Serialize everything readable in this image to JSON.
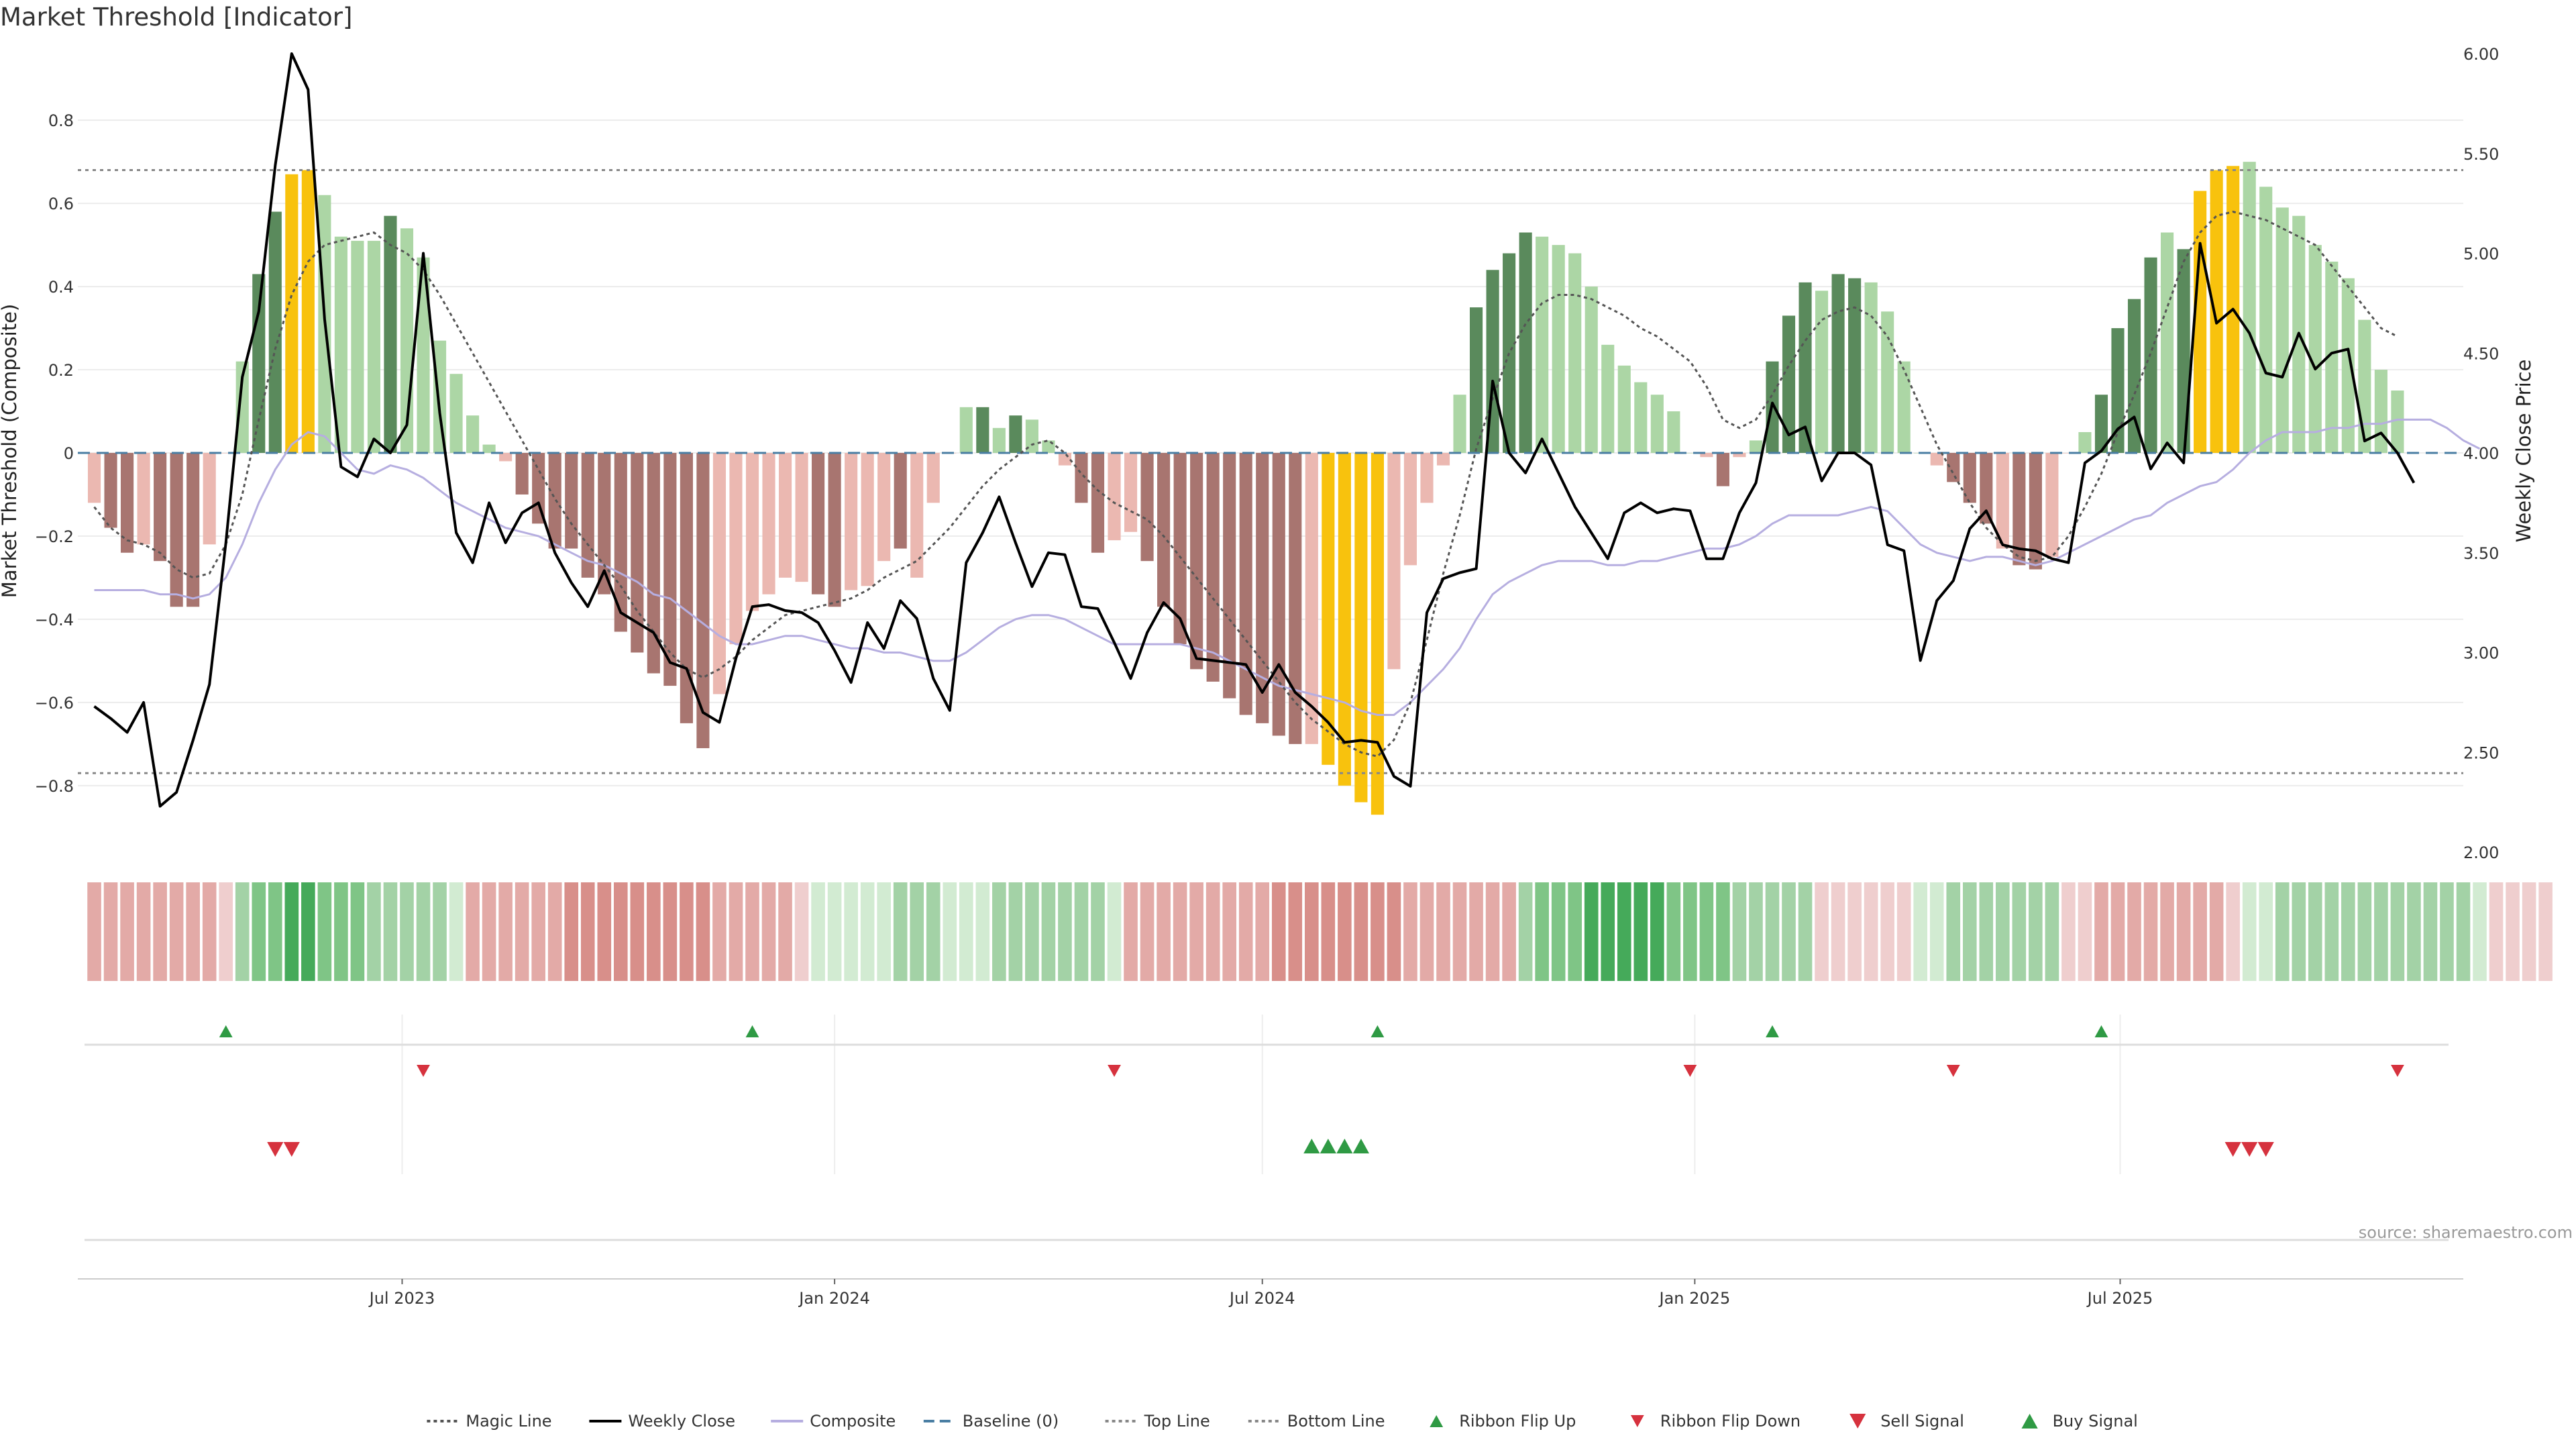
{
  "title": "Market Threshold [Indicator]",
  "source_note": "source: sharemaestro.com",
  "colors": {
    "bright_green": "#5a8a5c",
    "light_green": "#acd6a5",
    "bright_red": "#a87570",
    "light_red": "#ebb8b1",
    "extreme": "#f8c20d",
    "weekly_close": "#000000",
    "composite": "#b6aee0",
    "magic_line": "#555555",
    "baseline": "#4a7ea3",
    "threshold_line": "#888888",
    "buy_marker": "#2f9a44",
    "sell_marker": "#d6323e"
  },
  "chart_data": {
    "type": "bar",
    "title": "Market Threshold [Indicator]",
    "ylabel": "Market Threshold (Composite)",
    "y2label": "Weekly Close Price",
    "ylim": [
      -0.96,
      0.96
    ],
    "y2lim": [
      2.0,
      6.0
    ],
    "yticks": [
      -0.8,
      -0.6,
      -0.4,
      -0.2,
      0,
      0.2,
      0.4,
      0.6,
      0.8
    ],
    "ytick_labels": [
      "−0.8",
      "−0.6",
      "−0.4",
      "−0.2",
      "0",
      "0.2",
      "0.4",
      "0.6",
      "0.8"
    ],
    "y2ticks": [
      2.0,
      2.5,
      3.0,
      3.5,
      4.0,
      4.5,
      5.0,
      5.5,
      6.0
    ],
    "y2tick_labels": [
      "2.00",
      "2.50",
      "3.00",
      "3.50",
      "4.00",
      "4.50",
      "5.00",
      "5.50",
      "6.00"
    ],
    "x_start": "2023-02-13",
    "x_end": "2025-11-24",
    "xticks": [
      {
        "date": "2023-07-01",
        "label": "Jul 2023"
      },
      {
        "date": "2024-01-01",
        "label": "Jan 2024"
      },
      {
        "date": "2024-07-01",
        "label": "Jul 2024"
      },
      {
        "date": "2025-01-01",
        "label": "Jan 2025"
      },
      {
        "date": "2025-07-01",
        "label": "Jul 2025"
      }
    ],
    "top_line": 0.68,
    "bottom_line": -0.77,
    "baseline": 0,
    "grid": true,
    "legend_position": "bottom-center",
    "series": [
      {
        "name": "Magic Line",
        "type": "line",
        "style": "dotted",
        "axis": "left"
      },
      {
        "name": "Weekly Close",
        "type": "line",
        "style": "solid",
        "axis": "right"
      },
      {
        "name": "Composite",
        "type": "line",
        "style": "solid",
        "axis": "left"
      },
      {
        "name": "Baseline (0)",
        "type": "line",
        "style": "dashed",
        "axis": "left"
      },
      {
        "name": "Top Line",
        "type": "line",
        "style": "dotted",
        "axis": "left"
      },
      {
        "name": "Bottom Line",
        "type": "line",
        "style": "dotted",
        "axis": "left"
      }
    ],
    "bars": {
      "start": "2023-02-20",
      "values": [
        -0.12,
        -0.18,
        -0.24,
        -0.22,
        -0.26,
        -0.37,
        -0.37,
        -0.22,
        0.0,
        0.22,
        0.43,
        0.58,
        0.67,
        0.68,
        0.62,
        0.52,
        0.51,
        0.51,
        0.57,
        0.54,
        0.47,
        0.27,
        0.19,
        0.09,
        0.02,
        -0.02,
        -0.1,
        -0.17,
        -0.23,
        -0.23,
        -0.3,
        -0.34,
        -0.43,
        -0.48,
        -0.53,
        -0.56,
        -0.65,
        -0.71,
        -0.58,
        -0.46,
        -0.38,
        -0.34,
        -0.3,
        -0.31,
        -0.34,
        -0.37,
        -0.33,
        -0.32,
        -0.26,
        -0.23,
        -0.3,
        -0.12,
        0.0,
        0.11,
        0.11,
        0.06,
        0.09,
        0.08,
        0.03,
        -0.03,
        -0.12,
        -0.24,
        -0.21,
        -0.19,
        -0.26,
        -0.37,
        -0.46,
        -0.52,
        -0.55,
        -0.59,
        -0.63,
        -0.65,
        -0.68,
        -0.7,
        -0.7,
        -0.75,
        -0.8,
        -0.84,
        -0.87,
        -0.52,
        -0.27,
        -0.12,
        -0.03,
        0.14,
        0.35,
        0.44,
        0.48,
        0.53,
        0.52,
        0.5,
        0.48,
        0.4,
        0.26,
        0.21,
        0.17,
        0.14,
        0.1,
        0.0,
        -0.01,
        -0.08,
        -0.01,
        0.03,
        0.22,
        0.33,
        0.41,
        0.39,
        0.43,
        0.42,
        0.41,
        0.34,
        0.22,
        0.0,
        -0.03,
        -0.07,
        -0.12,
        -0.17,
        -0.23,
        -0.27,
        -0.28,
        -0.25,
        0.0,
        0.05,
        0.14,
        0.3,
        0.37,
        0.47,
        0.53,
        0.49,
        0.63,
        0.68,
        0.69,
        0.7,
        0.64,
        0.59,
        0.57,
        0.5,
        0.46,
        0.42,
        0.32,
        0.2,
        0.15
      ],
      "color_codes": [
        "lr",
        "br",
        "br",
        "lr",
        "br",
        "br",
        "br",
        "lr",
        "lr",
        "lg",
        "bg",
        "bg",
        "ex",
        "ex",
        "lg",
        "lg",
        "lg",
        "lg",
        "bg",
        "lg",
        "lg",
        "lg",
        "lg",
        "lg",
        "lg",
        "lr",
        "br",
        "br",
        "br",
        "br",
        "br",
        "br",
        "br",
        "br",
        "br",
        "br",
        "br",
        "br",
        "lr",
        "lr",
        "lr",
        "lr",
        "lr",
        "lr",
        "br",
        "br",
        "lr",
        "lr",
        "lr",
        "br",
        "lr",
        "lr",
        "lr",
        "lg",
        "bg",
        "lg",
        "bg",
        "lg",
        "lg",
        "lr",
        "br",
        "br",
        "lr",
        "lr",
        "br",
        "br",
        "br",
        "br",
        "br",
        "br",
        "br",
        "br",
        "br",
        "br",
        "lr",
        "ex",
        "ex",
        "ex",
        "ex",
        "lr",
        "lr",
        "lr",
        "lr",
        "lg",
        "bg",
        "bg",
        "bg",
        "bg",
        "lg",
        "lg",
        "lg",
        "lg",
        "lg",
        "lg",
        "lg",
        "lg",
        "lg",
        "lg",
        "lr",
        "br",
        "lr",
        "lg",
        "bg",
        "bg",
        "bg",
        "lg",
        "bg",
        "bg",
        "lg",
        "lg",
        "lg",
        "lg",
        "lr",
        "br",
        "br",
        "br",
        "lr",
        "br",
        "br",
        "lr",
        "lr",
        "lg",
        "bg",
        "bg",
        "bg",
        "bg",
        "lg",
        "bg",
        "ex",
        "ex",
        "ex",
        "lg",
        "lg",
        "lg",
        "lg",
        "lg",
        "lg",
        "lg",
        "lg",
        "lg"
      ]
    },
    "composite": [
      -0.33,
      -0.33,
      -0.33,
      -0.33,
      -0.34,
      -0.34,
      -0.35,
      -0.34,
      -0.3,
      -0.22,
      -0.12,
      -0.04,
      0.02,
      0.05,
      0.04,
      0.0,
      -0.04,
      -0.05,
      -0.03,
      -0.04,
      -0.06,
      -0.09,
      -0.12,
      -0.14,
      -0.16,
      -0.18,
      -0.19,
      -0.2,
      -0.22,
      -0.24,
      -0.26,
      -0.27,
      -0.29,
      -0.31,
      -0.34,
      -0.35,
      -0.38,
      -0.41,
      -0.44,
      -0.46,
      -0.46,
      -0.45,
      -0.44,
      -0.44,
      -0.45,
      -0.46,
      -0.47,
      -0.47,
      -0.48,
      -0.48,
      -0.49,
      -0.5,
      -0.5,
      -0.48,
      -0.45,
      -0.42,
      -0.4,
      -0.39,
      -0.39,
      -0.4,
      -0.42,
      -0.44,
      -0.46,
      -0.46,
      -0.46,
      -0.46,
      -0.46,
      -0.47,
      -0.48,
      -0.5,
      -0.52,
      -0.54,
      -0.56,
      -0.57,
      -0.58,
      -0.59,
      -0.6,
      -0.62,
      -0.63,
      -0.63,
      -0.6,
      -0.56,
      -0.52,
      -0.47,
      -0.4,
      -0.34,
      -0.31,
      -0.29,
      -0.27,
      -0.26,
      -0.26,
      -0.26,
      -0.27,
      -0.27,
      -0.26,
      -0.26,
      -0.25,
      -0.24,
      -0.23,
      -0.23,
      -0.22,
      -0.2,
      -0.17,
      -0.15,
      -0.15,
      -0.15,
      -0.15,
      -0.14,
      -0.13,
      -0.14,
      -0.18,
      -0.22,
      -0.24,
      -0.25,
      -0.26,
      -0.25,
      -0.25,
      -0.26,
      -0.27,
      -0.26,
      -0.24,
      -0.22,
      -0.2,
      -0.18,
      -0.16,
      -0.15,
      -0.12,
      -0.1,
      -0.08,
      -0.07,
      -0.04,
      0.0,
      0.03,
      0.05,
      0.05,
      0.05,
      0.06,
      0.06,
      0.07,
      0.07,
      0.08,
      0.08,
      0.08,
      0.06,
      0.03,
      0.01
    ],
    "magic_line": [
      -0.13,
      -0.18,
      -0.21,
      -0.22,
      -0.24,
      -0.28,
      -0.3,
      -0.29,
      -0.22,
      -0.1,
      0.08,
      0.25,
      0.38,
      0.46,
      0.5,
      0.51,
      0.52,
      0.53,
      0.5,
      0.48,
      0.44,
      0.38,
      0.31,
      0.24,
      0.17,
      0.1,
      0.03,
      -0.04,
      -0.11,
      -0.17,
      -0.22,
      -0.27,
      -0.32,
      -0.38,
      -0.43,
      -0.48,
      -0.52,
      -0.54,
      -0.52,
      -0.49,
      -0.45,
      -0.42,
      -0.39,
      -0.38,
      -0.37,
      -0.36,
      -0.35,
      -0.33,
      -0.3,
      -0.28,
      -0.26,
      -0.22,
      -0.18,
      -0.13,
      -0.08,
      -0.04,
      -0.01,
      0.02,
      0.03,
      0.0,
      -0.05,
      -0.09,
      -0.12,
      -0.14,
      -0.16,
      -0.2,
      -0.25,
      -0.3,
      -0.35,
      -0.4,
      -0.45,
      -0.5,
      -0.55,
      -0.6,
      -0.64,
      -0.67,
      -0.7,
      -0.72,
      -0.73,
      -0.69,
      -0.6,
      -0.45,
      -0.29,
      -0.15,
      0.01,
      0.13,
      0.24,
      0.31,
      0.36,
      0.38,
      0.38,
      0.37,
      0.35,
      0.33,
      0.3,
      0.28,
      0.25,
      0.22,
      0.16,
      0.08,
      0.06,
      0.08,
      0.14,
      0.21,
      0.27,
      0.32,
      0.34,
      0.35,
      0.33,
      0.28,
      0.2,
      0.11,
      0.02,
      -0.05,
      -0.12,
      -0.18,
      -0.22,
      -0.25,
      -0.26,
      -0.25,
      -0.2,
      -0.13,
      -0.05,
      0.05,
      0.14,
      0.24,
      0.35,
      0.46,
      0.53,
      0.57,
      0.58,
      0.57,
      0.56,
      0.54,
      0.52,
      0.5,
      0.45,
      0.4,
      0.35,
      0.3,
      0.28
    ],
    "weekly_close": [
      2.73,
      2.67,
      2.6,
      2.75,
      2.23,
      2.3,
      2.56,
      2.84,
      3.55,
      4.38,
      4.71,
      5.44,
      6.0,
      5.82,
      4.67,
      3.93,
      3.88,
      4.07,
      4.0,
      4.14,
      5.0,
      4.2,
      3.6,
      3.45,
      3.75,
      3.55,
      3.7,
      3.75,
      3.5,
      3.35,
      3.23,
      3.41,
      3.2,
      3.15,
      3.1,
      2.95,
      2.92,
      2.7,
      2.65,
      2.97,
      3.23,
      3.24,
      3.21,
      3.2,
      3.15,
      3.01,
      2.85,
      3.15,
      3.02,
      3.26,
      3.17,
      2.87,
      2.71,
      3.45,
      3.6,
      3.78,
      3.55,
      3.33,
      3.5,
      3.49,
      3.23,
      3.22,
      3.05,
      2.87,
      3.1,
      3.25,
      3.17,
      2.97,
      2.96,
      2.95,
      2.94,
      2.8,
      2.94,
      2.8,
      2.73,
      2.65,
      2.55,
      2.56,
      2.55,
      2.38,
      2.33,
      3.2,
      3.37,
      3.4,
      3.42,
      4.36,
      4.0,
      3.9,
      4.07,
      3.9,
      3.73,
      3.6,
      3.47,
      3.7,
      3.75,
      3.7,
      3.72,
      3.71,
      3.47,
      3.47,
      3.7,
      3.85,
      4.25,
      4.09,
      4.13,
      3.86,
      4.0,
      4.0,
      3.94,
      3.54,
      3.51,
      2.96,
      3.26,
      3.36,
      3.62,
      3.71,
      3.54,
      3.52,
      3.51,
      3.47,
      3.45,
      3.95,
      4.01,
      4.12,
      4.18,
      3.92,
      4.05,
      3.95,
      5.05,
      4.65,
      4.72,
      4.6,
      4.4,
      4.38,
      4.6,
      4.42,
      4.5,
      4.52,
      4.06,
      4.1,
      4.0,
      3.85
    ],
    "ribbon": [
      {
        "start": "2023-02-20",
        "codes": [
          "r1",
          "r1",
          "r1",
          "r1",
          "r1",
          "r1",
          "r1",
          "r1",
          "r0",
          "g1",
          "g2",
          "g2",
          "g3",
          "g3",
          "g2",
          "g2",
          "g2",
          "g1",
          "g1",
          "g1",
          "g1",
          "g1",
          "g0",
          "r1",
          "r1",
          "r1",
          "r1",
          "r1",
          "r1",
          "r2",
          "r2",
          "r2",
          "r2",
          "r2",
          "r2",
          "r2",
          "r2",
          "r2",
          "r1",
          "r1",
          "r1",
          "r1",
          "r1",
          "r0",
          "g0",
          "g0",
          "g0",
          "g0",
          "g0",
          "g1",
          "g1",
          "g1",
          "g0",
          "g0",
          "g0",
          "g1",
          "g1",
          "g1",
          "g1",
          "g1",
          "g1",
          "g1",
          "g0",
          "r1",
          "r1",
          "r1",
          "r1",
          "r1",
          "r1",
          "r1",
          "r1",
          "r1",
          "r2",
          "r2",
          "r2",
          "r2",
          "r2",
          "r2",
          "r2",
          "r2",
          "r1",
          "r1",
          "r1",
          "r1",
          "r1",
          "r1",
          "r1",
          "g1",
          "g2",
          "g2",
          "g2",
          "g3",
          "g3",
          "g3",
          "g3",
          "g3",
          "g2",
          "g2",
          "g2",
          "g2",
          "g1",
          "g1",
          "g1",
          "g1",
          "g1",
          "r0",
          "r0",
          "r0",
          "r0",
          "r0",
          "r0",
          "g0",
          "g0",
          "g1",
          "g1",
          "g1",
          "g1",
          "g1",
          "g1",
          "g1",
          "r0",
          "r0",
          "r1",
          "r1",
          "r1",
          "r1",
          "r1",
          "r1",
          "r1",
          "r1",
          "r0",
          "g0",
          "g0",
          "g1",
          "g1",
          "g1",
          "g1",
          "g1",
          "g1",
          "g1",
          "g1",
          "g1",
          "g1",
          "g1",
          "g1",
          "g0",
          "r0",
          "r0",
          "r0",
          "r0"
        ]
      }
    ],
    "ribbon_flip_up": [
      "2023-04-17",
      "2023-11-27",
      "2024-08-19",
      "2025-02-03",
      "2025-06-23"
    ],
    "ribbon_flip_down": [
      "2023-07-10",
      "2024-04-29",
      "2024-12-30",
      "2025-04-21",
      "2025-10-27"
    ],
    "sell_signal": [
      "2023-05-08",
      "2023-05-15",
      "2025-08-18",
      "2025-08-25",
      "2025-09-01"
    ],
    "buy_signal": [
      "2024-07-22",
      "2024-07-29",
      "2024-08-05",
      "2024-08-12"
    ]
  },
  "legend": [
    {
      "label": "Magic Line",
      "icon": "dotted-line"
    },
    {
      "label": "Weekly Close",
      "icon": "solid-line"
    },
    {
      "label": "Composite",
      "icon": "solid-line"
    },
    {
      "label": "Baseline (0)",
      "icon": "dashed-line"
    },
    {
      "label": "Top Line",
      "icon": "dotted-line"
    },
    {
      "label": "Bottom Line",
      "icon": "dotted-line"
    },
    {
      "label": "Ribbon Flip Up",
      "icon": "triangle-up"
    },
    {
      "label": "Ribbon Flip Down",
      "icon": "triangle-down"
    },
    {
      "label": "Sell Signal",
      "icon": "triangle-down"
    },
    {
      "label": "Buy Signal",
      "icon": "triangle-up"
    }
  ]
}
